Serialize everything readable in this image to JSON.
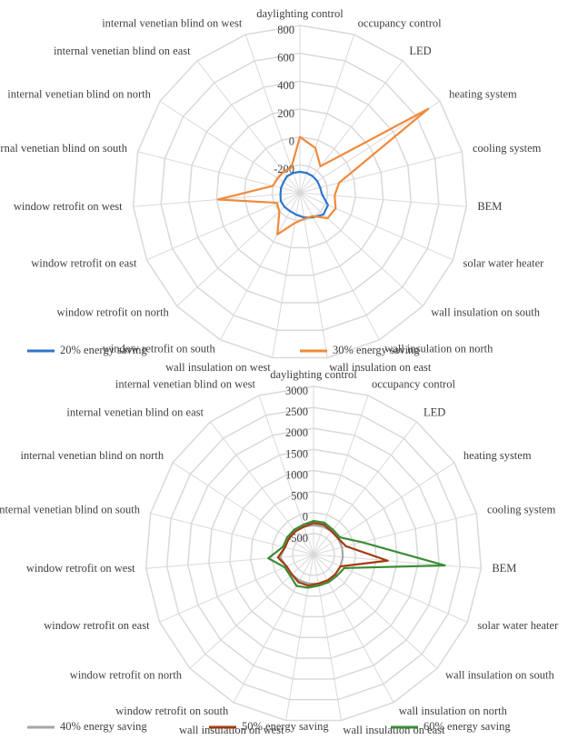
{
  "chart_data": [
    {
      "type": "radar",
      "categories": [
        "daylighting control",
        "occupancy control",
        "LED",
        "heating system",
        "cooling system",
        "BEM",
        "solar water heater",
        "wall insulation on south",
        "wall insulation on north",
        "wall insulation on east",
        "wall insulation on west",
        "window retrofit on south",
        "window retrofit on north",
        "window retrofit on east",
        "window retrofit on west",
        "internal venetian blind on south",
        "internal venetian blind on north",
        "internal venetian blind on east",
        "internal venetian blind on west"
      ],
      "ylim": [
        -400,
        800
      ],
      "yticks": [
        -200,
        0,
        200,
        400,
        600,
        800
      ],
      "series": [
        {
          "name": "20% energy saving",
          "color": "#2e75c8",
          "values": [
            -250,
            -250,
            -250,
            -250,
            -250,
            -240,
            -180,
            -170,
            -200,
            -220,
            -240,
            -250,
            -250,
            -250,
            -260,
            -260,
            -260,
            -250,
            -250
          ]
        },
        {
          "name": "30% energy saving",
          "color": "#f08a3c",
          "values": [
            0,
            -60,
            -160,
            700,
            -110,
            -150,
            -120,
            -130,
            -210,
            -210,
            -180,
            -60,
            -200,
            -220,
            190,
            -200,
            -210,
            -210,
            -210
          ]
        }
      ]
    },
    {
      "type": "radar",
      "categories": [
        "daylighting control",
        "occupancy control",
        "LED",
        "heating system",
        "cooling system",
        "BEM",
        "solar water heater",
        "wall insulation on south",
        "wall insulation on north",
        "wall insulation on east",
        "wall insulation on west",
        "window retrofit on south",
        "window retrofit on north",
        "window retrofit on east",
        "window retrofit on west",
        "internal venetian blind on south",
        "internal venetian blind on north",
        "internal venetian blind on east",
        "internal venetian blind on west"
      ],
      "ylim": [
        -1000,
        3000
      ],
      "yticks": [
        -500,
        0,
        500,
        1000,
        1500,
        2000,
        2500,
        3000
      ],
      "series": [
        {
          "name": "40% energy saving",
          "color": "#a6a6a6",
          "values": [
            -300,
            -300,
            -300,
            -300,
            -300,
            -300,
            -300,
            -300,
            -300,
            -300,
            -300,
            -300,
            -300,
            -300,
            -200,
            -300,
            -300,
            -300,
            -300
          ]
        },
        {
          "name": "50% energy saving",
          "color": "#a23b12",
          "values": [
            -250,
            -250,
            -300,
            -300,
            -200,
            770,
            -300,
            -300,
            -300,
            -300,
            -250,
            -250,
            -300,
            -300,
            -150,
            -300,
            -300,
            -300,
            -300
          ]
        },
        {
          "name": "60% energy saving",
          "color": "#3a8c34",
          "values": [
            -200,
            -200,
            -250,
            -250,
            190,
            2135,
            -200,
            -250,
            -250,
            -250,
            -200,
            -150,
            -250,
            -250,
            80,
            -250,
            -250,
            -250,
            -250
          ]
        }
      ]
    }
  ]
}
